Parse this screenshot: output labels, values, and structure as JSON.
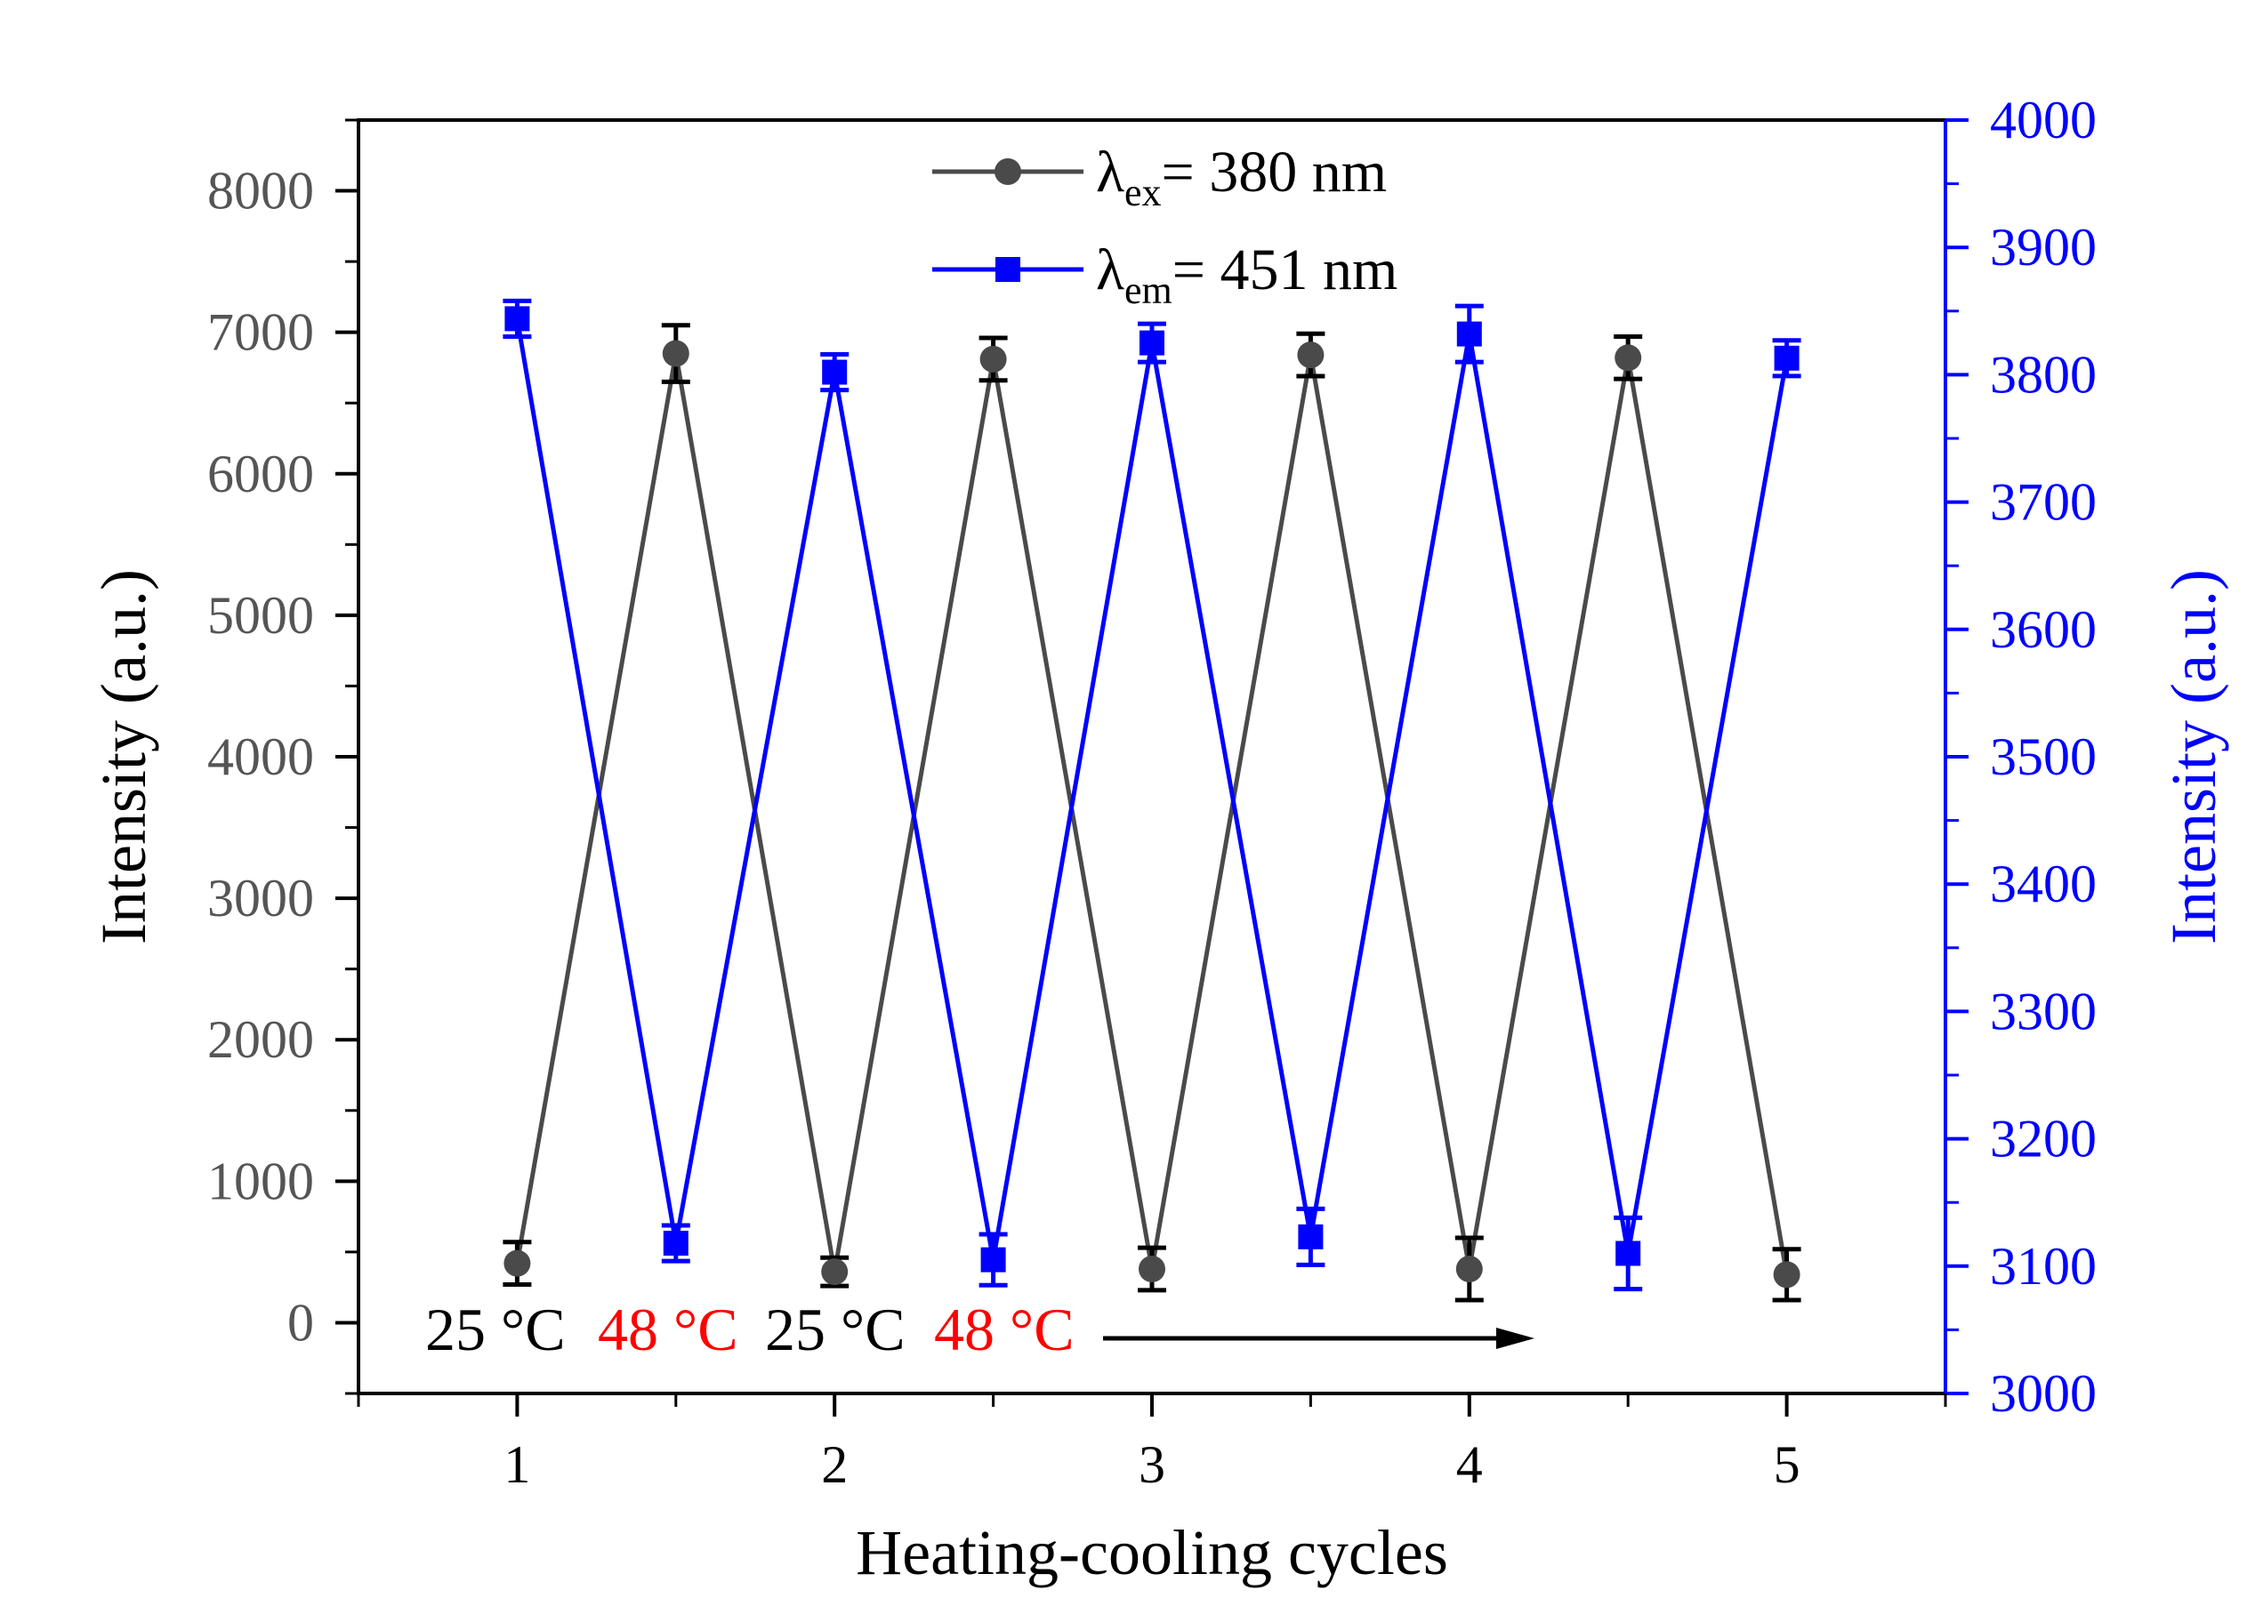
{
  "chart_data": {
    "type": "line",
    "xlabel": "Heating-cooling cycles",
    "ylabel_left": "Intensity (a.u.)",
    "ylabel_right": "Intensity (a.u.)",
    "xlim": [
      0.5,
      5.5
    ],
    "ylim_left": [
      -500,
      8500
    ],
    "ylim_right": [
      3000,
      4000
    ],
    "x_ticks": [
      1,
      2,
      3,
      4,
      5
    ],
    "y_left_ticks": [
      0,
      1000,
      2000,
      3000,
      4000,
      5000,
      6000,
      7000,
      8000
    ],
    "y_right_ticks": [
      3000,
      3100,
      3200,
      3300,
      3400,
      3500,
      3600,
      3700,
      3800,
      3900,
      4000
    ],
    "x": [
      1,
      1.5,
      2,
      2.5,
      3,
      3.5,
      4,
      4.5,
      5
    ],
    "series": [
      {
        "name": "λex= 380 nm",
        "label_main": "λ",
        "label_sub": "ex",
        "label_rest": "= 380 nm",
        "axis": "left",
        "color": "#4a4a4a",
        "errbar_color": "#000000",
        "marker": "circle",
        "values": [
          420,
          6850,
          360,
          6810,
          380,
          6840,
          380,
          6820,
          340
        ],
        "errors": [
          150,
          200,
          100,
          150,
          150,
          150,
          220,
          150,
          180
        ]
      },
      {
        "name": "λem= 451 nm",
        "label_main": "λ",
        "label_sub": "em",
        "label_rest": "= 451 nm",
        "axis": "right",
        "color": "#0000ff",
        "errbar_color": "#0000ff",
        "marker": "square",
        "values": [
          3844,
          3118,
          3802,
          3105,
          3825,
          3123,
          3832,
          3110,
          3813
        ],
        "errors": [
          14,
          14,
          14,
          20,
          15,
          22,
          22,
          28,
          14
        ]
      }
    ],
    "annotations": [
      {
        "text": "25 °C",
        "color": "#000000"
      },
      {
        "text": "48 °C",
        "color": "#ff0000"
      },
      {
        "text": "25 °C",
        "color": "#000000"
      },
      {
        "text": "48 °C",
        "color": "#ff0000"
      }
    ],
    "legend_position": "top-center"
  }
}
